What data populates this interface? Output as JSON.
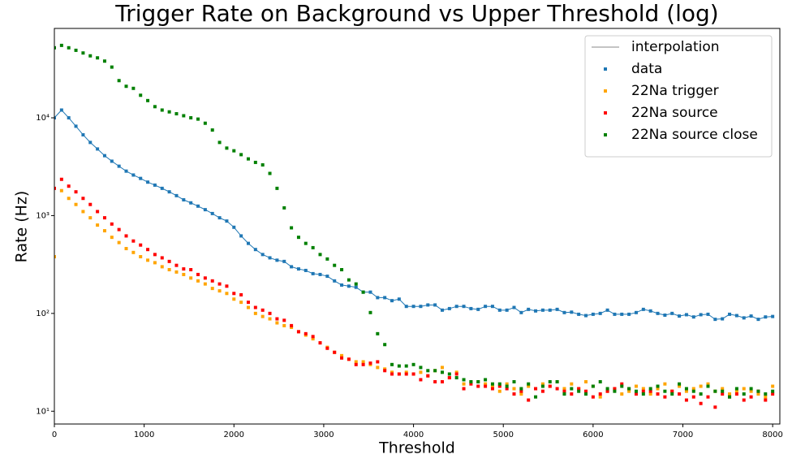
{
  "chart_data": {
    "type": "scatter",
    "title": "Trigger Rate on Background vs Upper Threshold (log)",
    "x_label": "Threshold",
    "y_label": "Rate (Hz)",
    "y_scale": "log",
    "legend_position": "upper right",
    "x": [
      0,
      80,
      160,
      240,
      320,
      400,
      480,
      560,
      640,
      720,
      800,
      880,
      960,
      1040,
      1120,
      1200,
      1280,
      1360,
      1440,
      1520,
      1600,
      1680,
      1760,
      1840,
      1920,
      2000,
      2080,
      2160,
      2240,
      2320,
      2400,
      2480,
      2560,
      2640,
      2720,
      2800,
      2880,
      2960,
      3040,
      3120,
      3200,
      3280,
      3360,
      3440,
      3520,
      3600,
      3680,
      3760,
      3840,
      3920,
      4000,
      4080,
      4160,
      4240,
      4320,
      4400,
      4480,
      4560,
      4640,
      4720,
      4800,
      4880,
      4960,
      5040,
      5120,
      5200,
      5280,
      5360,
      5440,
      5520,
      5600,
      5680,
      5760,
      5840,
      5920,
      6000,
      6080,
      6160,
      6240,
      6320,
      6400,
      6480,
      6560,
      6640,
      6720,
      6800,
      6880,
      6960,
      7040,
      7120,
      7200,
      7280,
      7360,
      7440,
      7520,
      7600,
      7680,
      7760,
      7840,
      7920,
      8000
    ],
    "xlim": [
      0,
      8080
    ],
    "xticks": [
      0,
      1000,
      2000,
      3000,
      4000,
      5000,
      6000,
      7000,
      8000
    ],
    "ylim": [
      7.4,
      82000
    ],
    "yticks": [
      {
        "value": 10,
        "label": "10¹"
      },
      {
        "value": 100,
        "label": "10²"
      },
      {
        "value": 1000,
        "label": "10³"
      },
      {
        "value": 10000,
        "label": "10⁴"
      }
    ],
    "interpolation": {
      "name": "interpolation",
      "color": "#b0b0b0"
    },
    "series": [
      {
        "name": "data",
        "color": "#1f77b4",
        "values": [
          10000,
          12000,
          10000,
          8200,
          6700,
          5600,
          4800,
          4100,
          3600,
          3200,
          2850,
          2600,
          2400,
          2200,
          2050,
          1900,
          1750,
          1600,
          1450,
          1350,
          1250,
          1150,
          1050,
          950,
          880,
          760,
          620,
          520,
          450,
          400,
          370,
          350,
          340,
          300,
          285,
          275,
          255,
          250,
          240,
          215,
          195,
          190,
          185,
          165,
          165,
          145,
          145,
          135,
          140,
          118,
          118,
          118,
          122,
          122,
          108,
          112,
          118,
          118,
          112,
          110,
          118,
          118,
          108,
          108,
          115,
          102,
          110,
          106,
          108,
          108,
          110,
          102,
          103,
          98,
          95,
          98,
          100,
          108,
          98,
          98,
          98,
          102,
          110,
          106,
          100,
          96,
          100,
          94,
          97,
          92,
          97,
          98,
          87,
          88,
          98,
          95,
          90,
          94,
          87,
          92,
          93
        ]
      },
      {
        "name": "22Na trigger",
        "color": "#ffa500",
        "values": [
          380,
          1800,
          1500,
          1300,
          1100,
          950,
          800,
          700,
          600,
          530,
          460,
          420,
          380,
          350,
          330,
          300,
          280,
          265,
          250,
          230,
          215,
          200,
          180,
          170,
          160,
          140,
          130,
          115,
          100,
          93,
          88,
          80,
          75,
          72,
          65,
          60,
          55,
          50,
          45,
          40,
          37,
          34,
          32,
          32,
          30,
          28,
          27,
          25,
          24,
          25,
          24,
          25,
          23,
          26,
          28,
          22,
          25,
          19,
          20,
          20,
          19,
          18,
          16,
          19,
          17,
          15,
          18,
          17,
          19,
          18,
          20,
          17,
          19,
          17,
          20,
          18,
          14,
          16,
          17,
          15,
          16,
          18,
          17,
          15,
          17,
          19,
          16,
          18,
          16,
          17,
          18,
          19,
          16,
          17,
          15,
          16,
          17,
          16,
          15,
          14,
          18
        ]
      },
      {
        "name": "22Na source",
        "color": "#ff0000",
        "values": [
          1900,
          2350,
          2000,
          1750,
          1500,
          1300,
          1100,
          950,
          820,
          720,
          620,
          550,
          500,
          450,
          400,
          370,
          340,
          310,
          285,
          280,
          250,
          230,
          215,
          200,
          190,
          160,
          155,
          130,
          115,
          108,
          100,
          88,
          85,
          75,
          65,
          62,
          58,
          50,
          44,
          40,
          35,
          34,
          30,
          30,
          31,
          32,
          26,
          24,
          24,
          24,
          24,
          21,
          23,
          20,
          20,
          22,
          24,
          17,
          19,
          18,
          18,
          17,
          18,
          17,
          15,
          16,
          13,
          17,
          16,
          18,
          17,
          16,
          15,
          17,
          16,
          14,
          15,
          16,
          17,
          19,
          17,
          15,
          16,
          16,
          15,
          14,
          16,
          15,
          13,
          14,
          12,
          14,
          11,
          15,
          14,
          15,
          13,
          14,
          16,
          13,
          15
        ]
      },
      {
        "name": "22Na source close",
        "color": "#008000",
        "values": [
          52000,
          55000,
          52000,
          49000,
          46000,
          43000,
          41000,
          38000,
          33000,
          24000,
          21000,
          20000,
          17000,
          15000,
          13000,
          12000,
          11500,
          11000,
          10500,
          10000,
          9700,
          8800,
          7500,
          5600,
          4900,
          4600,
          4200,
          3800,
          3500,
          3300,
          2700,
          1900,
          1200,
          750,
          600,
          520,
          470,
          400,
          360,
          310,
          280,
          220,
          200,
          165,
          102,
          62,
          48,
          30,
          29,
          29,
          30,
          28,
          26,
          26,
          25,
          24,
          22,
          21,
          20,
          20,
          21,
          19,
          19,
          18,
          20,
          17,
          19,
          14,
          18,
          20,
          20,
          15,
          17,
          16,
          15,
          18,
          20,
          17,
          16,
          18,
          17,
          16,
          15,
          17,
          18,
          16,
          15,
          19,
          17,
          16,
          15,
          18,
          16,
          16,
          14,
          17,
          15,
          17,
          16,
          15,
          16
        ]
      }
    ]
  }
}
